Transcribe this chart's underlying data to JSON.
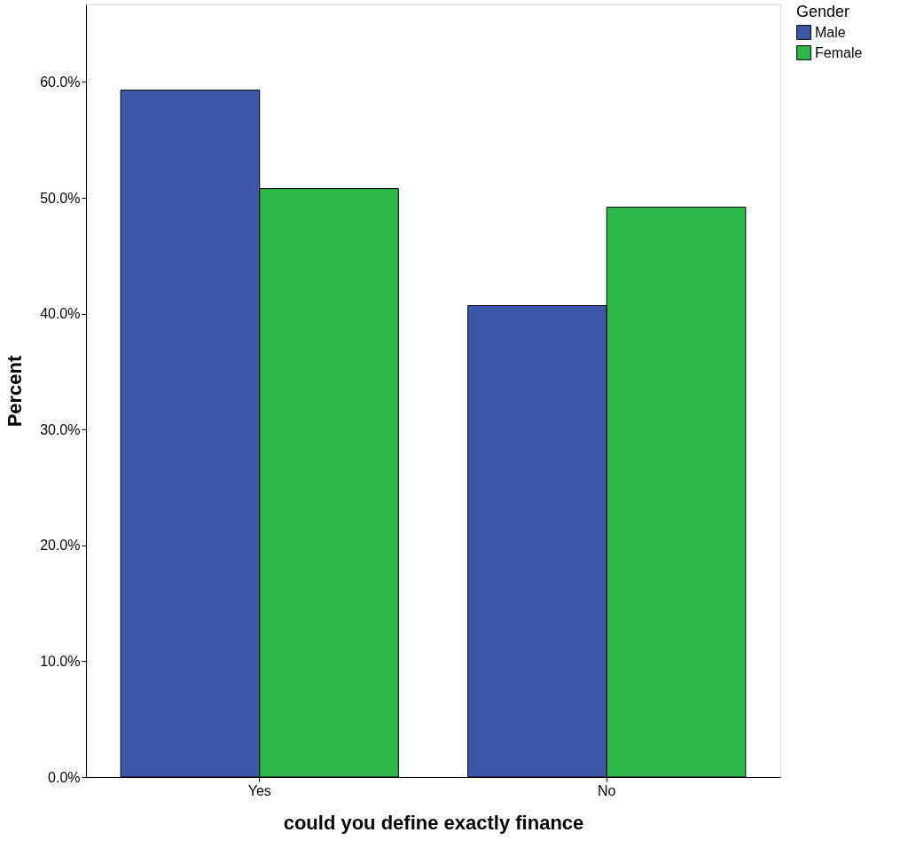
{
  "chart_data": {
    "type": "bar",
    "xlabel": "could you define exactly finance",
    "ylabel": "Percent",
    "legend_title": "Gender",
    "categories": [
      "Yes",
      "No"
    ],
    "series": [
      {
        "name": "Male",
        "color": "#3d57a9",
        "values": [
          59.3,
          40.7
        ]
      },
      {
        "name": "Female",
        "color": "#2eb84a",
        "values": [
          50.8,
          49.2
        ]
      }
    ],
    "ylim": [
      0,
      66.7
    ],
    "yticks": [
      {
        "value": 0,
        "label": "0.0%"
      },
      {
        "value": 10,
        "label": "10.0%"
      },
      {
        "value": 20,
        "label": "20.0%"
      },
      {
        "value": 30,
        "label": "30.0%"
      },
      {
        "value": 40,
        "label": "40.0%"
      },
      {
        "value": 50,
        "label": "50.0%"
      },
      {
        "value": 60,
        "label": "60.0%"
      }
    ],
    "grid": false,
    "legend": "top right"
  }
}
